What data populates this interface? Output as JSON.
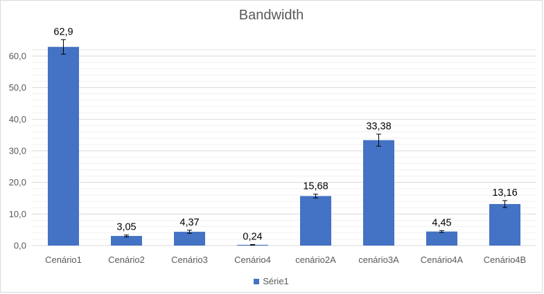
{
  "chart_data": {
    "type": "bar",
    "title": "Bandwidth",
    "xlabel": "",
    "ylabel": "",
    "categories": [
      "Cenário1",
      "Cenário2",
      "Cenário3",
      "Cenário4",
      "cenário2A",
      "cenário3A",
      "Cenário4A",
      "Cenário4B"
    ],
    "series": [
      {
        "name": "Série1",
        "color": "#4472c4",
        "values": [
          62.9,
          3.05,
          4.37,
          0.24,
          15.68,
          33.38,
          4.45,
          13.16
        ],
        "data_labels": [
          "62,9",
          "3,05",
          "4,37",
          "0,24",
          "15,68",
          "33,38",
          "4,45",
          "13,16"
        ],
        "error": [
          2.3,
          0.3,
          0.5,
          0.1,
          0.6,
          1.9,
          0.3,
          1.1
        ]
      }
    ],
    "ylim": [
      0,
      60
    ],
    "yticks": [
      0,
      10,
      20,
      30,
      40,
      50,
      60
    ],
    "ytick_labels": [
      "0,0",
      "10,0",
      "20,0",
      "30,0",
      "40,0",
      "50,0",
      "60,0"
    ],
    "grid": true,
    "legend_position": "bottom"
  }
}
